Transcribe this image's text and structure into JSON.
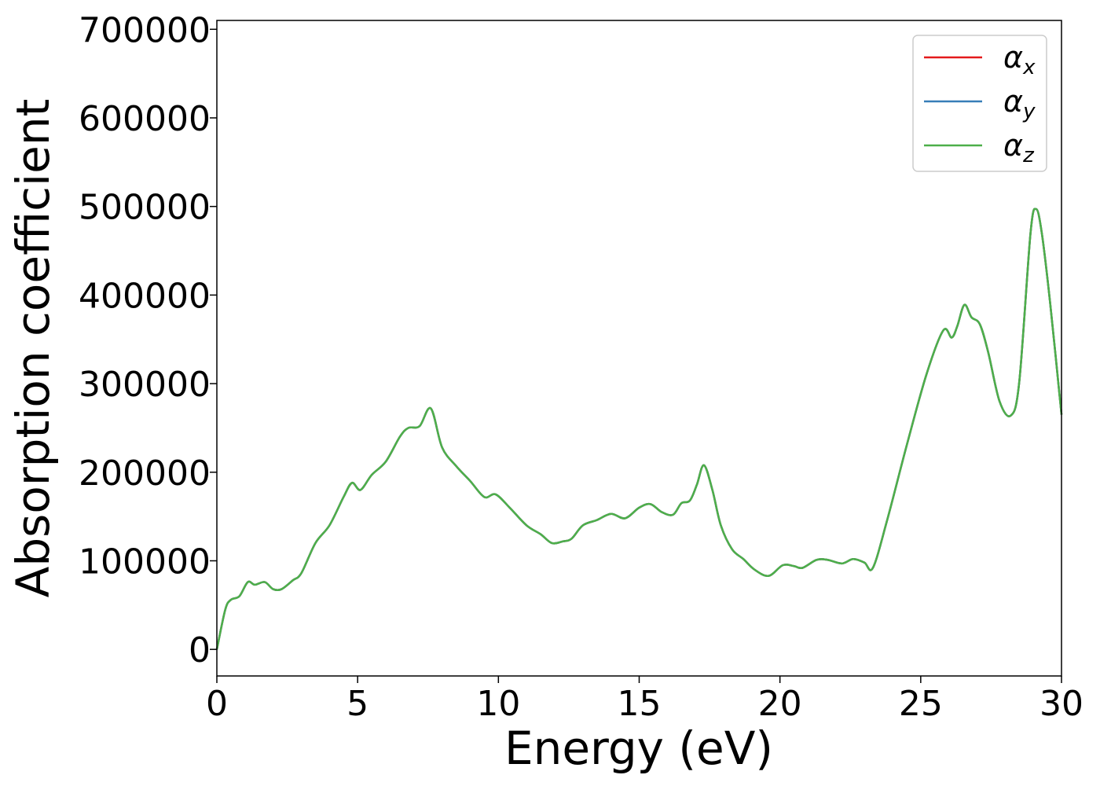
{
  "chart_data": {
    "type": "line",
    "title": "",
    "xlabel": "Energy (eV)",
    "ylabel": "Absorption coefficient",
    "xlim": [
      0,
      30
    ],
    "ylim": [
      -30000,
      710000
    ],
    "xticks": [
      0,
      5,
      10,
      15,
      20,
      25,
      30
    ],
    "xtick_labels": [
      "0",
      "5",
      "10",
      "15",
      "20",
      "25",
      "30"
    ],
    "yticks": [
      0,
      100000,
      200000,
      300000,
      400000,
      500000,
      600000,
      700000
    ],
    "ytick_labels": [
      "0",
      "100000",
      "200000",
      "300000",
      "400000",
      "500000",
      "600000",
      "700000"
    ],
    "grid": false,
    "legend_position": "top-right",
    "x": [
      0,
      0.3,
      0.5,
      0.8,
      1.1,
      1.35,
      1.7,
      2.0,
      2.3,
      2.7,
      3.0,
      3.5,
      4.0,
      4.5,
      4.8,
      5.1,
      5.5,
      6.0,
      6.5,
      6.8,
      7.2,
      7.6,
      8.0,
      8.5,
      9.0,
      9.5,
      9.9,
      10.4,
      11.0,
      11.5,
      11.9,
      12.3,
      12.6,
      13.0,
      13.5,
      14.0,
      14.5,
      15.0,
      15.4,
      15.8,
      16.2,
      16.5,
      16.8,
      17.05,
      17.3,
      17.6,
      17.9,
      18.3,
      18.7,
      19.1,
      19.6,
      20.1,
      20.5,
      20.8,
      21.3,
      21.7,
      22.2,
      22.6,
      23.0,
      23.3,
      23.8,
      24.5,
      25.2,
      25.8,
      26.1,
      26.3,
      26.55,
      26.8,
      27.1,
      27.4,
      27.8,
      28.2,
      28.5,
      28.9,
      29.1,
      29.3,
      29.6,
      30.0
    ],
    "series": [
      {
        "name": "α_x",
        "label_main": "α",
        "label_sub": "x",
        "color": "#e41a1c",
        "y": [
          0,
          45000,
          56000,
          60000,
          76000,
          73000,
          76000,
          68000,
          68000,
          78000,
          86000,
          120000,
          140000,
          172000,
          188000,
          180000,
          197000,
          212000,
          240000,
          250000,
          252000,
          272000,
          228000,
          207000,
          190000,
          172000,
          175000,
          160000,
          140000,
          130000,
          120000,
          122000,
          125000,
          140000,
          146000,
          153000,
          148000,
          160000,
          164000,
          155000,
          152000,
          165000,
          168000,
          186000,
          208000,
          180000,
          140000,
          113000,
          102000,
          90000,
          83000,
          95000,
          94000,
          92000,
          101000,
          101000,
          97000,
          102000,
          98000,
          92000,
          145000,
          230000,
          310000,
          360000,
          352000,
          365000,
          389000,
          375000,
          367000,
          335000,
          280000,
          264000,
          302000,
          470000,
          497000,
          470000,
          390000,
          265000
        ]
      },
      {
        "name": "α_y",
        "label_main": "α",
        "label_sub": "y",
        "color": "#377eb8",
        "y": [
          0,
          45000,
          56000,
          60000,
          76000,
          73000,
          76000,
          68000,
          68000,
          78000,
          86000,
          120000,
          140000,
          172000,
          188000,
          180000,
          197000,
          212000,
          240000,
          250000,
          252000,
          272000,
          228000,
          207000,
          190000,
          172000,
          175000,
          160000,
          140000,
          130000,
          120000,
          122000,
          125000,
          140000,
          146000,
          153000,
          148000,
          160000,
          164000,
          155000,
          152000,
          165000,
          168000,
          186000,
          208000,
          180000,
          140000,
          113000,
          102000,
          90000,
          83000,
          95000,
          94000,
          92000,
          101000,
          101000,
          97000,
          102000,
          98000,
          92000,
          145000,
          230000,
          310000,
          360000,
          352000,
          365000,
          389000,
          375000,
          367000,
          335000,
          280000,
          264000,
          302000,
          470000,
          497000,
          470000,
          390000,
          265000
        ]
      },
      {
        "name": "α_z",
        "label_main": "α",
        "label_sub": "z",
        "color": "#4daf4a",
        "y": [
          0,
          45000,
          56000,
          60000,
          76000,
          73000,
          76000,
          68000,
          68000,
          78000,
          86000,
          120000,
          140000,
          172000,
          188000,
          180000,
          197000,
          212000,
          240000,
          250000,
          252000,
          272000,
          228000,
          207000,
          190000,
          172000,
          175000,
          160000,
          140000,
          130000,
          120000,
          122000,
          125000,
          140000,
          146000,
          153000,
          148000,
          160000,
          164000,
          155000,
          152000,
          165000,
          168000,
          186000,
          208000,
          180000,
          140000,
          113000,
          102000,
          90000,
          83000,
          95000,
          94000,
          92000,
          101000,
          101000,
          97000,
          102000,
          98000,
          92000,
          145000,
          230000,
          310000,
          360000,
          352000,
          365000,
          389000,
          375000,
          367000,
          335000,
          280000,
          264000,
          302000,
          470000,
          497000,
          470000,
          390000,
          265000
        ]
      }
    ]
  }
}
